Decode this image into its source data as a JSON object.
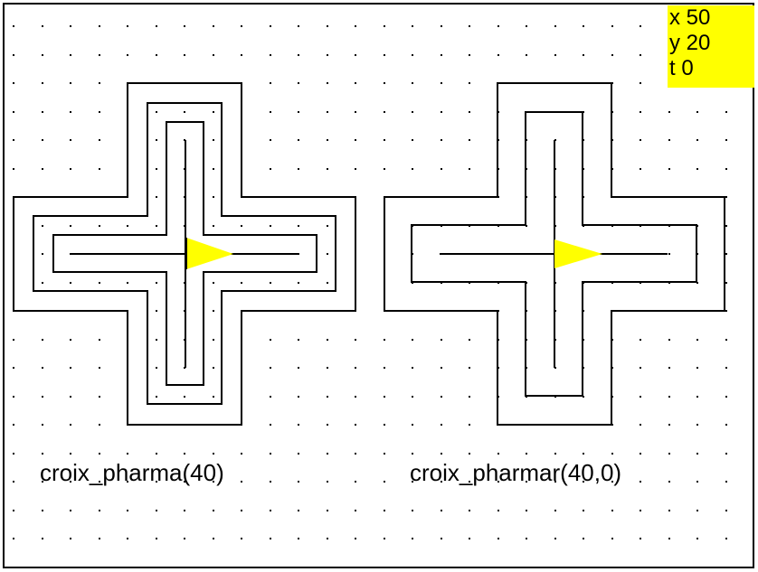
{
  "colors": {
    "background": "#ffffff",
    "stroke": "#000000",
    "turtle": "#ffff00",
    "status_bg": "#ffff00"
  },
  "labels": {
    "left": "croix_pharma(40)",
    "right": "croix_pharmar(40,0)"
  },
  "status": {
    "x": "x 50",
    "y": "y 20",
    "t": "t 0"
  },
  "icons": {
    "turtle": "turtle-triangle-icon"
  }
}
